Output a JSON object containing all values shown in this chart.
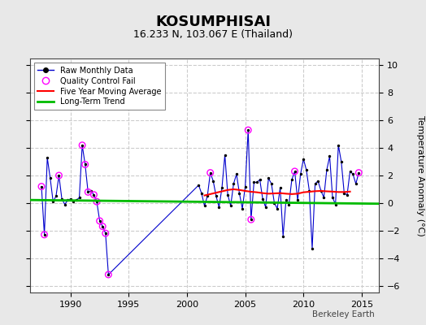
{
  "title": "KOSUMPHISAI",
  "subtitle": "16.233 N, 103.067 E (Thailand)",
  "ylabel": "Temperature Anomaly (°C)",
  "watermark": "Berkeley Earth",
  "xlim": [
    1986.5,
    2016.5
  ],
  "ylim": [
    -6.5,
    10.5
  ],
  "yticks": [
    -6,
    -4,
    -2,
    0,
    2,
    4,
    6,
    8,
    10
  ],
  "xticks": [
    1990,
    1995,
    2000,
    2005,
    2010,
    2015
  ],
  "fig_bg": "#e8e8e8",
  "plot_bg": "#ffffff",
  "grid_color": "#cccccc",
  "raw_color": "#0000cc",
  "raw_dot_color": "#000000",
  "qc_color": "#ff00ff",
  "moving_avg_color": "#ff0000",
  "trend_color": "#00bb00",
  "raw_data": [
    [
      1987.5,
      1.2
    ],
    [
      1987.75,
      -2.3
    ],
    [
      1988.0,
      3.3
    ],
    [
      1988.25,
      1.8
    ],
    [
      1988.5,
      0.1
    ],
    [
      1988.75,
      0.5
    ],
    [
      1989.0,
      2.0
    ],
    [
      1989.25,
      0.3
    ],
    [
      1989.5,
      -0.1
    ],
    [
      1989.75,
      0.2
    ],
    [
      1990.0,
      0.3
    ],
    [
      1990.25,
      0.1
    ],
    [
      1990.5,
      0.2
    ],
    [
      1990.75,
      0.4
    ],
    [
      1991.0,
      4.2
    ],
    [
      1991.25,
      2.8
    ],
    [
      1991.5,
      0.8
    ],
    [
      1991.75,
      0.9
    ],
    [
      1992.0,
      0.6
    ],
    [
      1992.25,
      0.1
    ],
    [
      1992.5,
      -1.3
    ],
    [
      1992.75,
      -1.7
    ],
    [
      1993.0,
      -2.2
    ],
    [
      1993.25,
      -5.2
    ],
    [
      2001.0,
      1.3
    ],
    [
      2001.25,
      0.7
    ],
    [
      2001.5,
      -0.2
    ],
    [
      2001.75,
      0.5
    ],
    [
      2002.0,
      2.2
    ],
    [
      2002.25,
      1.6
    ],
    [
      2002.5,
      0.5
    ],
    [
      2002.75,
      -0.3
    ],
    [
      2003.0,
      1.1
    ],
    [
      2003.25,
      3.5
    ],
    [
      2003.5,
      0.6
    ],
    [
      2003.75,
      -0.2
    ],
    [
      2004.0,
      1.4
    ],
    [
      2004.25,
      2.1
    ],
    [
      2004.5,
      0.7
    ],
    [
      2004.75,
      -0.4
    ],
    [
      2005.0,
      1.2
    ],
    [
      2005.25,
      5.3
    ],
    [
      2005.5,
      -1.2
    ],
    [
      2005.75,
      1.5
    ],
    [
      2006.0,
      1.5
    ],
    [
      2006.25,
      1.7
    ],
    [
      2006.5,
      0.3
    ],
    [
      2006.75,
      -0.3
    ],
    [
      2007.0,
      1.8
    ],
    [
      2007.25,
      1.4
    ],
    [
      2007.5,
      0.0
    ],
    [
      2007.75,
      -0.4
    ],
    [
      2008.0,
      1.1
    ],
    [
      2008.25,
      -2.4
    ],
    [
      2008.5,
      0.2
    ],
    [
      2008.75,
      -0.1
    ],
    [
      2009.0,
      1.7
    ],
    [
      2009.25,
      2.3
    ],
    [
      2009.5,
      0.2
    ],
    [
      2009.75,
      2.1
    ],
    [
      2010.0,
      3.2
    ],
    [
      2010.25,
      2.4
    ],
    [
      2010.5,
      0.9
    ],
    [
      2010.75,
      -3.3
    ],
    [
      2011.0,
      1.4
    ],
    [
      2011.25,
      1.6
    ],
    [
      2011.5,
      0.9
    ],
    [
      2011.75,
      0.4
    ],
    [
      2012.0,
      2.4
    ],
    [
      2012.25,
      3.4
    ],
    [
      2012.5,
      0.4
    ],
    [
      2012.75,
      -0.1
    ],
    [
      2013.0,
      4.2
    ],
    [
      2013.25,
      3.0
    ],
    [
      2013.5,
      0.7
    ],
    [
      2013.75,
      0.6
    ],
    [
      2014.0,
      2.3
    ],
    [
      2014.25,
      2.1
    ],
    [
      2014.5,
      1.4
    ],
    [
      2014.75,
      2.2
    ]
  ],
  "qc_fail_points": [
    [
      1987.5,
      1.2
    ],
    [
      1987.75,
      -2.3
    ],
    [
      1989.0,
      2.0
    ],
    [
      1991.0,
      4.2
    ],
    [
      1991.25,
      2.8
    ],
    [
      1991.5,
      0.8
    ],
    [
      1992.0,
      0.6
    ],
    [
      1992.25,
      0.1
    ],
    [
      1992.5,
      -1.3
    ],
    [
      1992.75,
      -1.7
    ],
    [
      1993.0,
      -2.2
    ],
    [
      1993.25,
      -5.2
    ],
    [
      2002.0,
      2.2
    ],
    [
      2005.25,
      5.3
    ],
    [
      2005.5,
      -1.2
    ],
    [
      2009.25,
      2.3
    ],
    [
      2014.75,
      2.2
    ]
  ],
  "moving_avg": [
    [
      2001.5,
      0.55
    ],
    [
      2002.0,
      0.65
    ],
    [
      2002.5,
      0.75
    ],
    [
      2003.0,
      0.85
    ],
    [
      2003.5,
      0.95
    ],
    [
      2004.0,
      1.0
    ],
    [
      2004.5,
      0.95
    ],
    [
      2005.0,
      0.88
    ],
    [
      2005.5,
      0.82
    ],
    [
      2006.0,
      0.78
    ],
    [
      2006.5,
      0.72
    ],
    [
      2007.0,
      0.68
    ],
    [
      2007.5,
      0.7
    ],
    [
      2008.0,
      0.72
    ],
    [
      2008.5,
      0.68
    ],
    [
      2009.0,
      0.65
    ],
    [
      2009.5,
      0.68
    ],
    [
      2010.0,
      0.78
    ],
    [
      2010.5,
      0.82
    ],
    [
      2011.0,
      0.86
    ],
    [
      2011.5,
      0.88
    ],
    [
      2012.0,
      0.85
    ],
    [
      2012.5,
      0.83
    ],
    [
      2013.0,
      0.8
    ],
    [
      2013.5,
      0.8
    ],
    [
      2014.0,
      0.83
    ]
  ],
  "trend_x": [
    1986.5,
    2016.5
  ],
  "trend_y": [
    0.22,
    -0.05
  ]
}
